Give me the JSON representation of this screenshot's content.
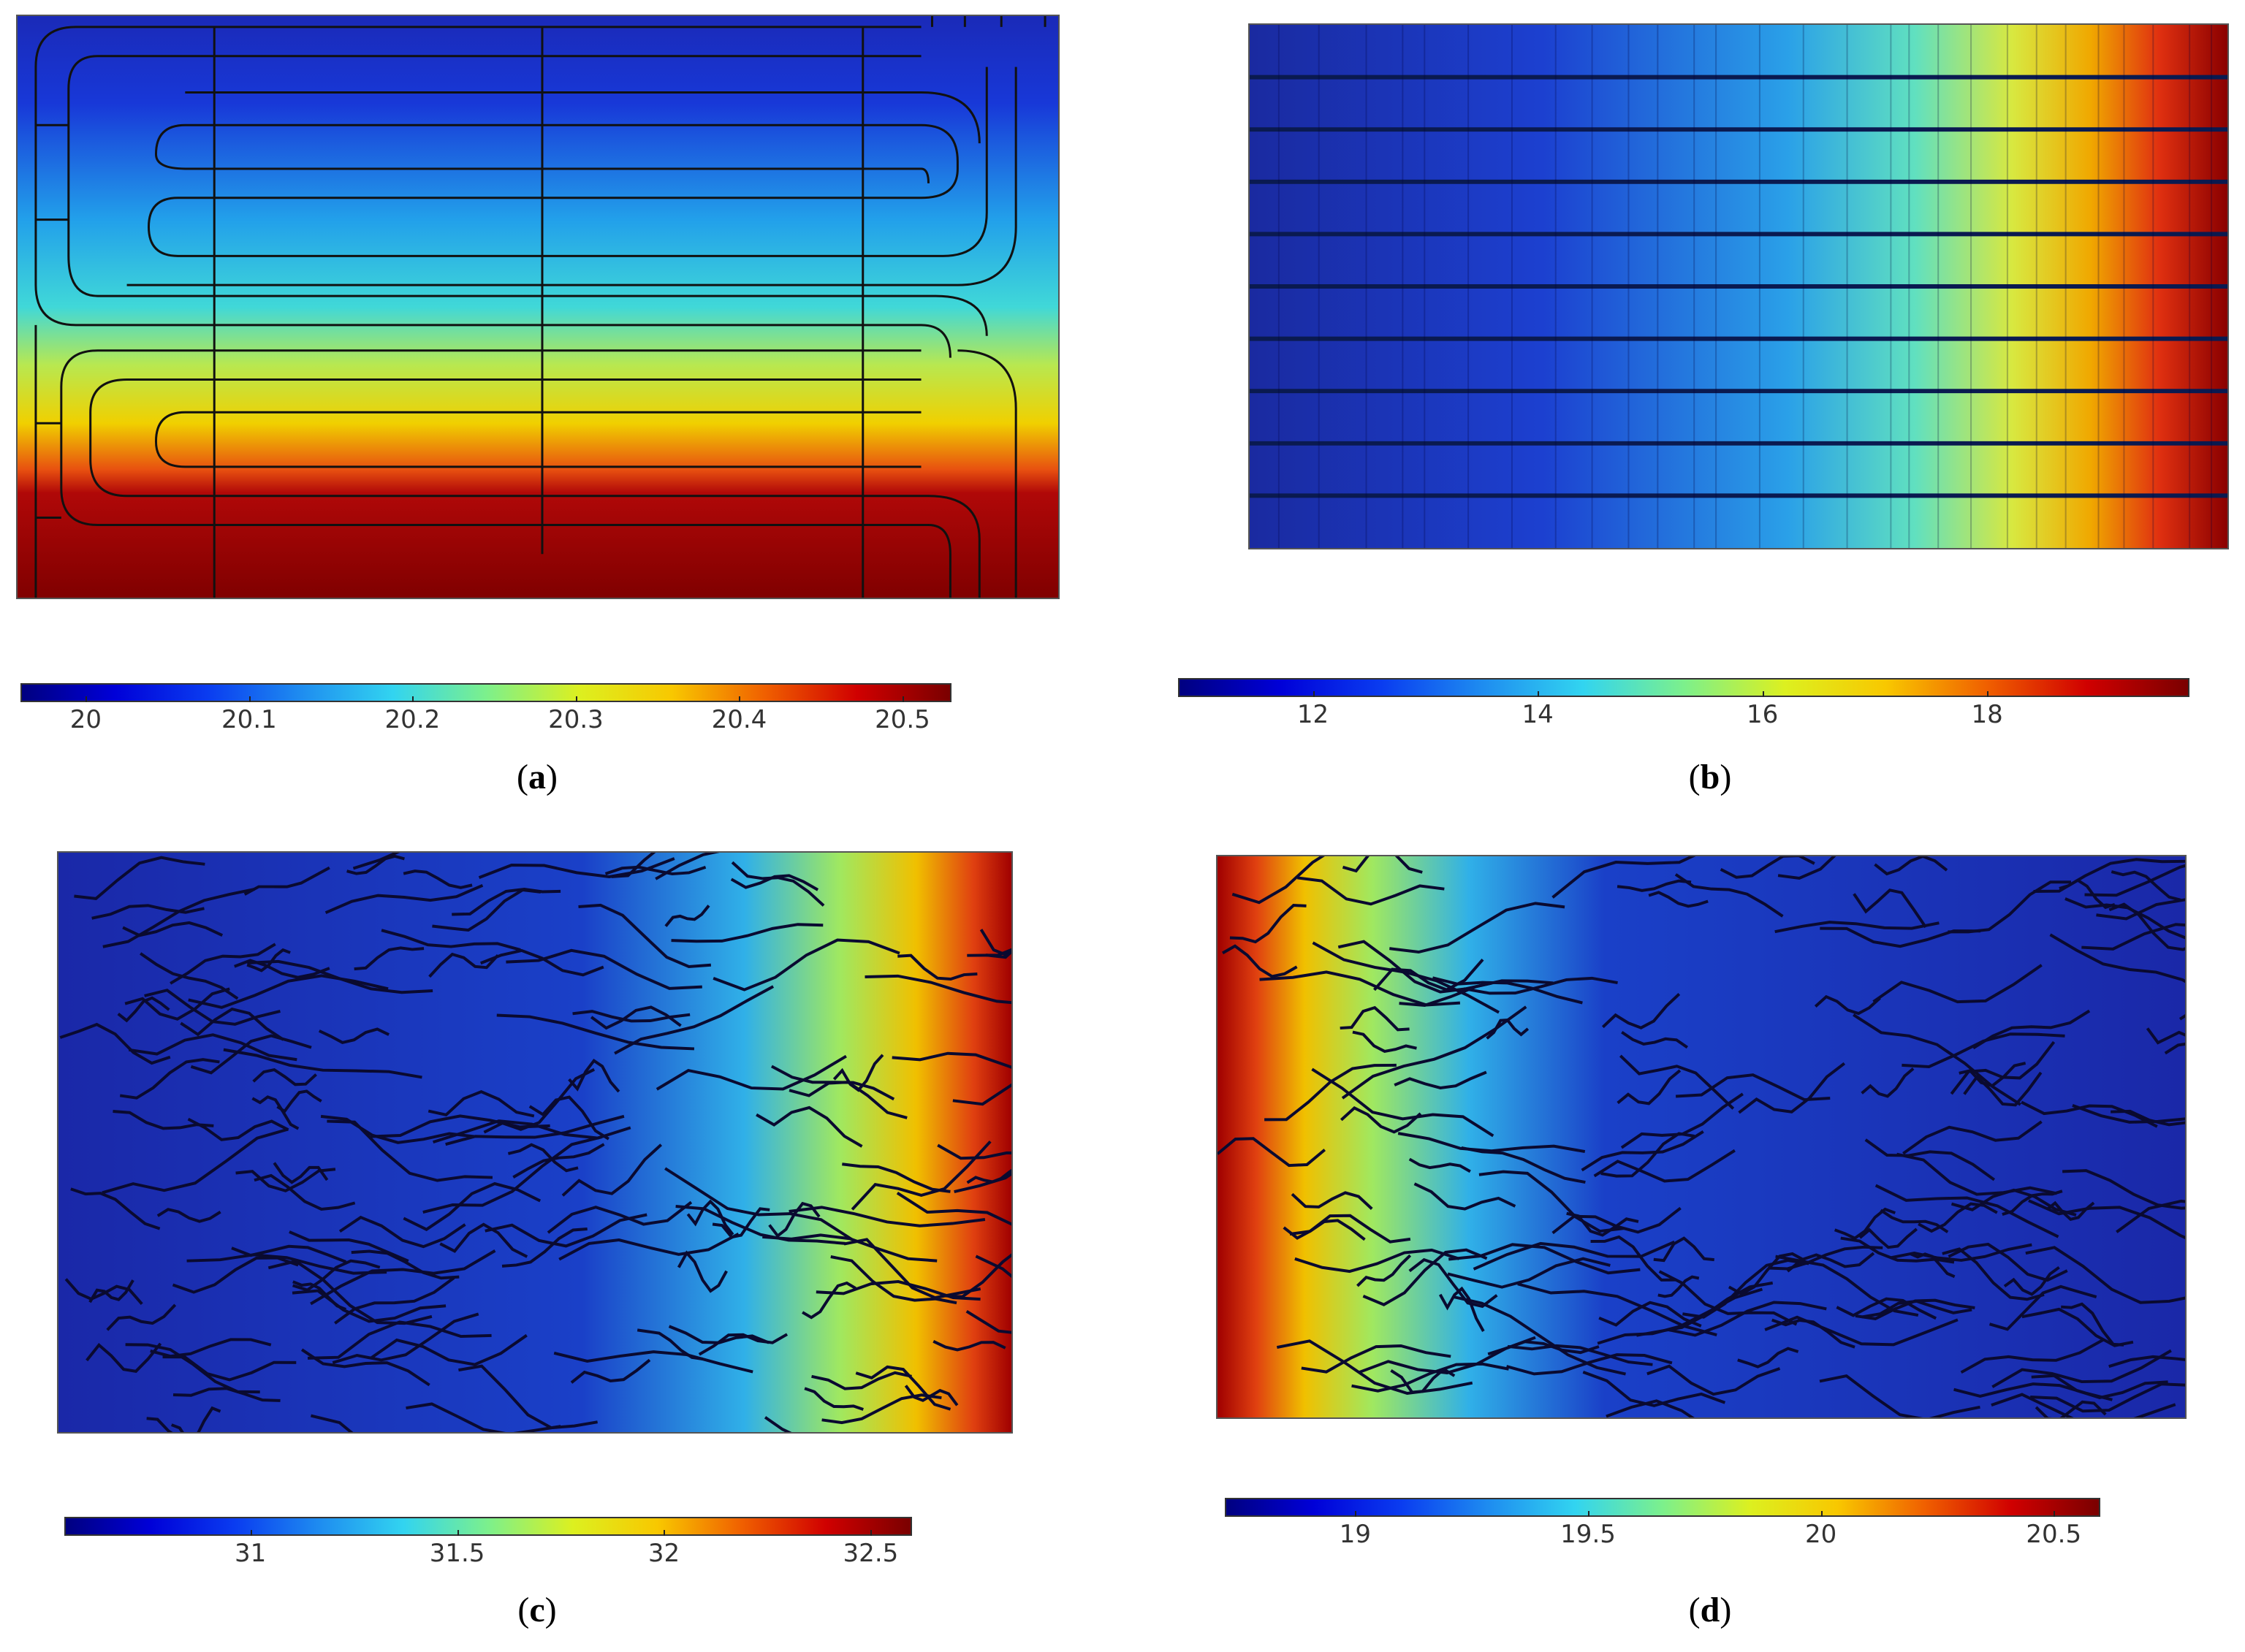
{
  "colormap": [
    "#000080",
    "#0000d8",
    "#0a3cf0",
    "#1e8cf0",
    "#32d4f0",
    "#7cf08c",
    "#dcf020",
    "#f8c800",
    "#f06000",
    "#d00000",
    "#7a0000"
  ],
  "panels": [
    {
      "id": "a",
      "caption_open": "(",
      "caption_letter": "a",
      "caption_close": ")",
      "field": "serpentine-channels",
      "colorbar": {
        "ticks": [
          {
            "value": 20,
            "label": "20"
          },
          {
            "value": 20.1,
            "label": "20.1"
          },
          {
            "value": 20.2,
            "label": "20.2"
          },
          {
            "value": 20.3,
            "label": "20.3"
          },
          {
            "value": 20.4,
            "label": "20.4"
          },
          {
            "value": 20.5,
            "label": "20.5"
          }
        ],
        "range": [
          19.96,
          20.53
        ]
      }
    },
    {
      "id": "b",
      "caption_open": "(",
      "caption_letter": "b",
      "caption_close": ")",
      "field": "parallel-strips",
      "colorbar": {
        "ticks": [
          {
            "value": 12,
            "label": "12"
          },
          {
            "value": 14,
            "label": "14"
          },
          {
            "value": 16,
            "label": "16"
          },
          {
            "value": 18,
            "label": "18"
          }
        ],
        "range": [
          10.8,
          19.8
        ]
      }
    },
    {
      "id": "c",
      "caption_open": "(",
      "caption_letter": "c",
      "caption_close": ")",
      "field": "random-contours-right-hot",
      "colorbar": {
        "ticks": [
          {
            "value": 31,
            "label": "31"
          },
          {
            "value": 31.5,
            "label": "31.5"
          },
          {
            "value": 32,
            "label": "32"
          },
          {
            "value": 32.5,
            "label": "32.5"
          }
        ],
        "range": [
          30.55,
          32.6
        ]
      }
    },
    {
      "id": "d",
      "caption_open": "(",
      "caption_letter": "d",
      "caption_close": ")",
      "field": "random-contours-left-hot",
      "colorbar": {
        "ticks": [
          {
            "value": 19,
            "label": "19"
          },
          {
            "value": 19.5,
            "label": "19.5"
          },
          {
            "value": 20,
            "label": "20"
          },
          {
            "value": 20.5,
            "label": "20.5"
          }
        ],
        "range": [
          18.72,
          20.6
        ]
      }
    }
  ]
}
